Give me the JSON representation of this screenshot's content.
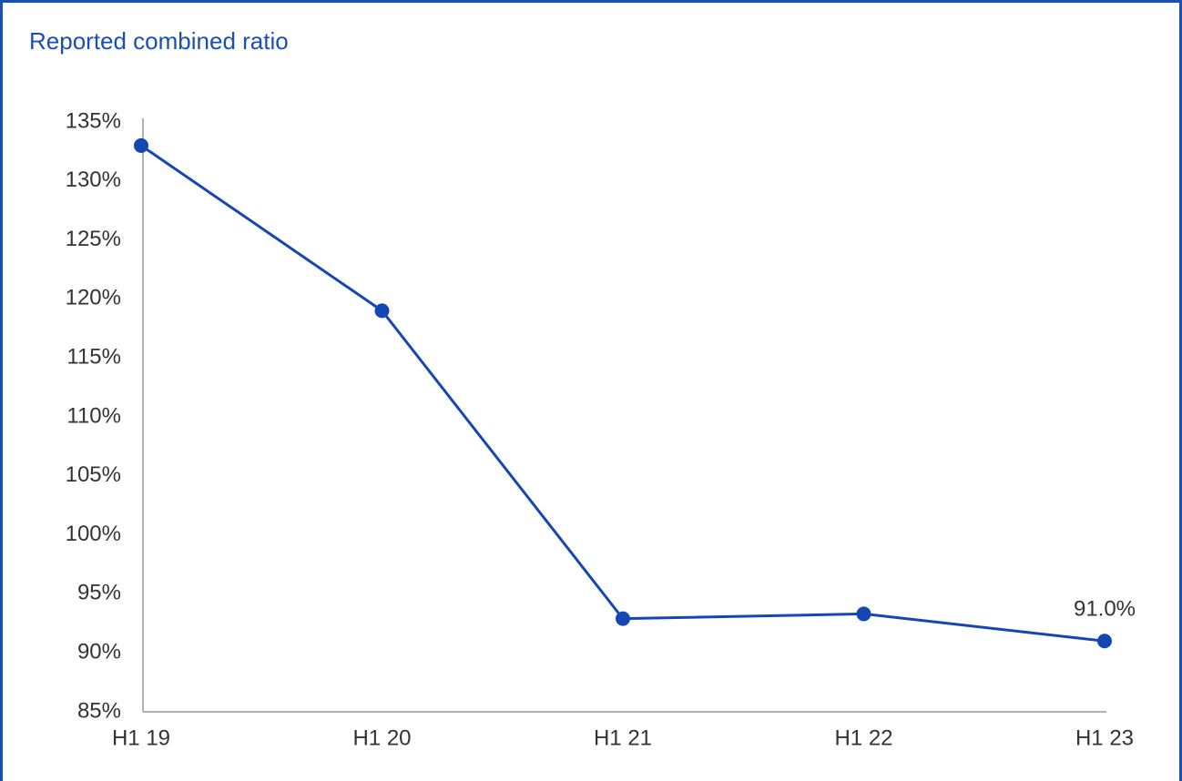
{
  "chart_data": {
    "type": "line",
    "title": "Reported combined ratio",
    "categories": [
      "H1 19",
      "H1 20",
      "H1 21",
      "H1 22",
      "H1 23"
    ],
    "series": [
      {
        "name": "Reported combined ratio",
        "color": "#1446b4",
        "values": [
          133,
          119,
          92.9,
          93.3,
          91.0
        ],
        "value_labels": [
          null,
          null,
          null,
          null,
          "91.0%"
        ]
      }
    ],
    "ylim": [
      85,
      135
    ],
    "yticks": [
      {
        "value": 85,
        "label": "85%"
      },
      {
        "value": 90,
        "label": "90%"
      },
      {
        "value": 95,
        "label": "95%"
      },
      {
        "value": 100,
        "label": "100%"
      },
      {
        "value": 105,
        "label": "105%"
      },
      {
        "value": 110,
        "label": "110%"
      },
      {
        "value": 115,
        "label": "115%"
      },
      {
        "value": 120,
        "label": "120%"
      },
      {
        "value": 125,
        "label": "125%"
      },
      {
        "value": 130,
        "label": "130%"
      },
      {
        "value": 135,
        "label": "135%"
      }
    ],
    "grid": false
  }
}
